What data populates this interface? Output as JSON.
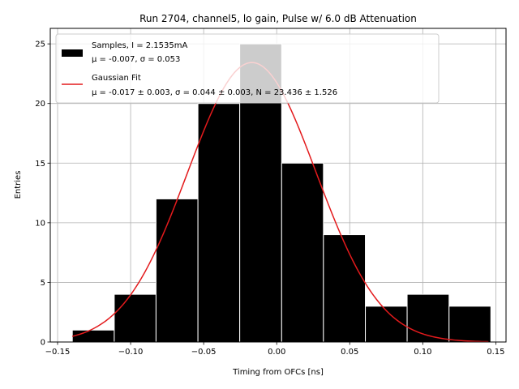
{
  "chart_data": {
    "type": "bar",
    "title": "Run 2704, channel5, lo gain, Pulse w/ 6.0 dB Attenuation",
    "xlabel": "Timing from OFCs [ns]",
    "ylabel": "Entries",
    "xlim": [
      -0.155,
      0.157
    ],
    "ylim": [
      0,
      26.3
    ],
    "xticks": [
      -0.15,
      -0.1,
      -0.05,
      0.0,
      0.05,
      0.1,
      0.15
    ],
    "xtick_labels": [
      "−0.15",
      "−0.10",
      "−0.05",
      "0.00",
      "0.05",
      "0.10",
      "0.15"
    ],
    "yticks": [
      0,
      5,
      10,
      15,
      20,
      25
    ],
    "ytick_labels": [
      "0",
      "5",
      "10",
      "15",
      "20",
      "25"
    ],
    "grid": true,
    "legend_position": "top-left",
    "histogram": {
      "name": "Samples, I = 2.1535mA",
      "stats_label": "μ = -0.007, σ = 0.053",
      "color": "#000000",
      "bin_edges": [
        -0.1399,
        -0.1112,
        -0.0826,
        -0.0539,
        -0.0253,
        0.0034,
        0.032,
        0.0607,
        0.0893,
        0.118,
        0.1466
      ],
      "counts": [
        1,
        4,
        12,
        20,
        25,
        15,
        9,
        3,
        4,
        3
      ]
    },
    "fit": {
      "name": "Gaussian Fit",
      "params_label": "μ = -0.017 ± 0.003, σ = 0.044 ± 0.003, N = 23.436 ± 1.526",
      "color": "#e31a1c",
      "mu": -0.017,
      "sigma": 0.044,
      "amplitude": 23.436,
      "x_range": [
        -0.14,
        0.145
      ]
    }
  }
}
